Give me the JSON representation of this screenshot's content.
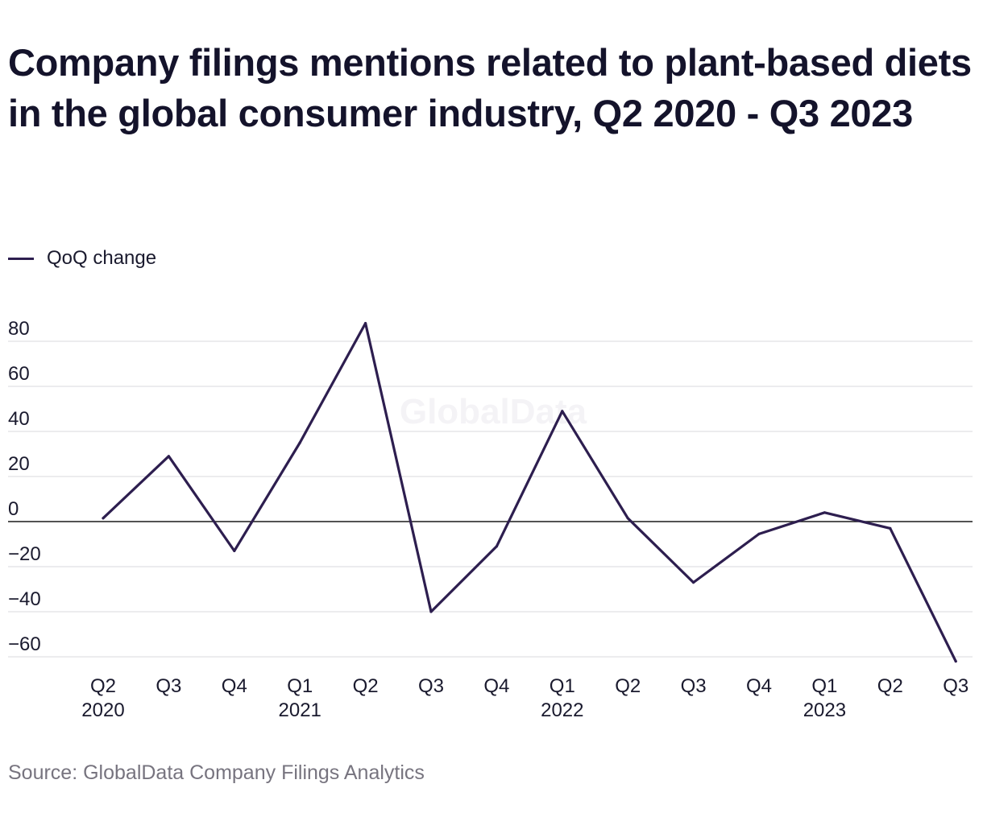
{
  "chart_data": {
    "type": "line",
    "title": "Company filings mentions related to plant-based diets in the global consumer industry, Q2 2020 - Q3 2023",
    "categories": [
      "Q2",
      "Q3",
      "Q4",
      "Q1",
      "Q2",
      "Q3",
      "Q4",
      "Q1",
      "Q2",
      "Q3",
      "Q4",
      "Q1",
      "Q2",
      "Q3"
    ],
    "year_labels": [
      "2020",
      "",
      "",
      "2021",
      "",
      "",
      "",
      "2022",
      "",
      "",
      "",
      "2023",
      "",
      ""
    ],
    "series": [
      {
        "name": "QoQ change",
        "color": "#2d1e4f",
        "values": [
          1.5,
          29,
          -13,
          35,
          88,
          -40,
          -11,
          49,
          1.5,
          -27,
          -5.5,
          4,
          -3,
          -62
        ]
      }
    ],
    "yticks": [
      -60,
      -40,
      -20,
      0,
      20,
      40,
      60,
      80
    ],
    "ylim": [
      -62,
      88
    ],
    "grid": true,
    "legend": "top-left",
    "watermark": "GlobalData"
  },
  "source": "Source: GlobalData Company Filings Analytics"
}
